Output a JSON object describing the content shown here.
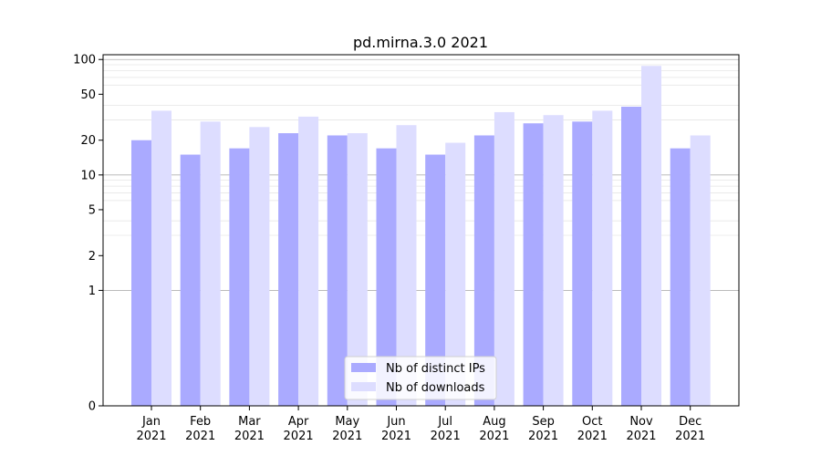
{
  "chart_data": {
    "type": "bar",
    "title": "pd.mirna.3.0 2021",
    "xlabel": "",
    "ylabel": "",
    "yscale": "symlog",
    "ylim": [
      0,
      110
    ],
    "yticks": [
      0,
      1,
      2,
      5,
      10,
      20,
      50,
      100
    ],
    "categories": [
      [
        "Jan",
        "2021"
      ],
      [
        "Feb",
        "2021"
      ],
      [
        "Mar",
        "2021"
      ],
      [
        "Apr",
        "2021"
      ],
      [
        "May",
        "2021"
      ],
      [
        "Jun",
        "2021"
      ],
      [
        "Jul",
        "2021"
      ],
      [
        "Aug",
        "2021"
      ],
      [
        "Sep",
        "2021"
      ],
      [
        "Oct",
        "2021"
      ],
      [
        "Nov",
        "2021"
      ],
      [
        "Dec",
        "2021"
      ]
    ],
    "series": [
      {
        "name": "Nb of distinct IPs",
        "color": "#aaaaff",
        "values": [
          20,
          15,
          17,
          23,
          22,
          17,
          15,
          22,
          28,
          29,
          39,
          17
        ]
      },
      {
        "name": "Nb of downloads",
        "color": "#ddddff",
        "values": [
          36,
          29,
          26,
          32,
          23,
          27,
          19,
          35,
          33,
          36,
          88,
          22
        ]
      }
    ],
    "legend_position": "bottom-center",
    "grid": true
  }
}
